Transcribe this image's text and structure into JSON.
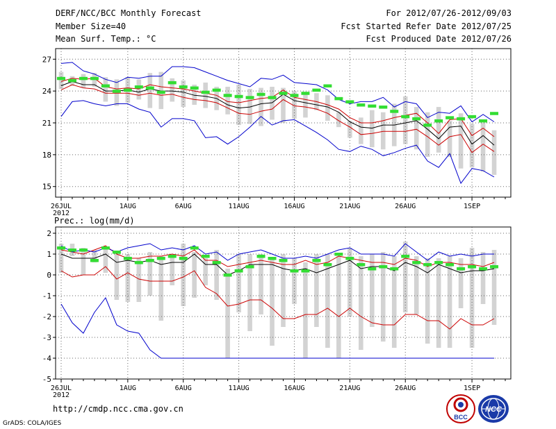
{
  "header": {
    "title": "DERF/NCC/BCC Monthly Forecast",
    "member_size": "Member Size=40",
    "variable": "Mean Surf. Temp.: °C",
    "forecast_period": "For 2012/07/26-2012/09/03",
    "started_refer": "Fcst Started Refer Date 2012/07/25",
    "produced": "Fcst Produced Date 2012/07/26"
  },
  "footer": {
    "url": "http://cmdp.ncc.cma.gov.cn",
    "grads": "GrADS: COLA/IGES",
    "logo_bcc": "BCC",
    "logo_ncc": "NCC"
  },
  "colors": {
    "median": "#000000",
    "inner_band": "#cc0000",
    "outer_band": "#0000cc",
    "climatology": "#33dd33",
    "spread": "#d3d3d3",
    "grid": "#666666"
  },
  "chart_data": [
    {
      "type": "line",
      "title": "Mean Surf. Temp.: °C",
      "ylabel": "°C",
      "x_tick_labels": [
        "26JUL",
        "1AUG",
        "6AUG",
        "11AUG",
        "16AUG",
        "21AUG",
        "26AUG",
        "1SEP"
      ],
      "x_tick_days": [
        0,
        6,
        11,
        16,
        21,
        26,
        31,
        37
      ],
      "x_sublabel": "2012",
      "xlim": [
        -0.5,
        40.5
      ],
      "ylim": [
        14,
        28
      ],
      "yticks": [
        15,
        18,
        21,
        24,
        27
      ],
      "x": [
        0,
        1,
        2,
        3,
        4,
        5,
        6,
        7,
        8,
        9,
        10,
        11,
        12,
        13,
        14,
        15,
        16,
        17,
        18,
        19,
        20,
        21,
        22,
        23,
        24,
        25,
        26,
        27,
        28,
        29,
        30,
        31,
        32,
        33,
        34,
        35,
        36,
        37,
        38,
        39
      ],
      "box_low": [
        24.2,
        24.5,
        24.3,
        24.4,
        23.0,
        22.6,
        22.9,
        23.2,
        22.4,
        22.3,
        23.0,
        22.5,
        22.7,
        22.4,
        22.2,
        21.8,
        20.8,
        20.9,
        20.7,
        21.3,
        21.0,
        21.4,
        21.5,
        22.2,
        21.2,
        20.6,
        19.6,
        19.0,
        18.7,
        18.5,
        18.8,
        19.0,
        18.5,
        17.8,
        18.2,
        17.8,
        16.7,
        16.8,
        16.4,
        16.1
      ],
      "box_high": [
        25.8,
        25.4,
        25.6,
        25.7,
        25.3,
        25.1,
        25.3,
        25.1,
        25.7,
        25.8,
        25.2,
        25.0,
        24.6,
        24.8,
        24.4,
        24.4,
        24.6,
        24.2,
        24.3,
        24.4,
        24.3,
        24.0,
        23.9,
        23.8,
        23.6,
        22.0,
        21.2,
        21.5,
        22.2,
        22.0,
        22.8,
        23.5,
        22.5,
        22.0,
        22.5,
        21.2,
        21.9,
        20.9,
        21.0,
        20.3
      ],
      "series": [
        {
          "name": "Ensemble median",
          "role": "median",
          "values": [
            24.5,
            24.9,
            24.6,
            24.6,
            24.0,
            24.0,
            24.1,
            23.9,
            24.2,
            24.0,
            24.0,
            23.9,
            23.6,
            23.5,
            23.3,
            22.7,
            22.4,
            22.5,
            22.8,
            22.9,
            23.7,
            23.1,
            22.9,
            22.7,
            22.5,
            22.0,
            21.1,
            20.6,
            20.5,
            20.8,
            20.8,
            21.0,
            21.2,
            20.4,
            19.5,
            20.6,
            20.7,
            19.0,
            19.8,
            18.9
          ]
        },
        {
          "name": "Inner band upper",
          "role": "inner_upper",
          "values": [
            24.9,
            25.2,
            25.1,
            25.2,
            24.4,
            24.2,
            24.3,
            24.2,
            24.6,
            24.4,
            24.3,
            24.2,
            24.0,
            23.8,
            23.6,
            23.0,
            22.9,
            23.1,
            23.3,
            23.4,
            24.1,
            23.4,
            23.2,
            23.0,
            22.7,
            22.3,
            21.5,
            21.0,
            21.0,
            21.2,
            21.5,
            21.7,
            21.9,
            21.0,
            20.0,
            21.3,
            21.4,
            19.8,
            20.5,
            19.7
          ]
        },
        {
          "name": "Inner band lower",
          "role": "inner_lower",
          "values": [
            24.1,
            24.6,
            24.3,
            24.2,
            23.8,
            23.8,
            23.8,
            23.6,
            23.8,
            23.6,
            23.7,
            23.4,
            23.2,
            23.1,
            22.9,
            22.4,
            21.9,
            21.8,
            22.1,
            22.3,
            23.2,
            22.6,
            22.5,
            22.3,
            21.9,
            21.2,
            20.6,
            19.9,
            20.0,
            20.2,
            20.2,
            20.2,
            20.4,
            19.7,
            18.9,
            19.7,
            19.9,
            18.2,
            19.0,
            18.3
          ]
        },
        {
          "name": "Outer band upper",
          "role": "outer_upper",
          "values": [
            26.6,
            26.7,
            25.9,
            25.6,
            25.1,
            24.8,
            25.3,
            25.2,
            25.4,
            25.4,
            26.3,
            26.3,
            26.2,
            25.8,
            25.4,
            25.0,
            24.7,
            24.4,
            25.2,
            25.1,
            25.5,
            24.8,
            24.7,
            24.6,
            24.1,
            23.2,
            22.8,
            23.0,
            23.0,
            23.4,
            22.5,
            23.0,
            22.8,
            21.5,
            22.0,
            21.9,
            22.6,
            21.1,
            21.8,
            21.1
          ]
        },
        {
          "name": "Outer band lower",
          "role": "outer_lower",
          "values": [
            21.6,
            23.0,
            23.1,
            22.8,
            22.6,
            22.8,
            22.8,
            22.3,
            22.0,
            20.6,
            21.4,
            21.4,
            21.2,
            19.6,
            19.7,
            19.0,
            19.7,
            20.6,
            21.6,
            20.8,
            21.2,
            21.3,
            20.7,
            20.1,
            19.4,
            18.5,
            18.3,
            18.8,
            18.5,
            17.9,
            18.2,
            18.6,
            18.9,
            17.4,
            16.8,
            18.1,
            15.3,
            16.7,
            16.5,
            15.9
          ]
        },
        {
          "name": "Climatology",
          "role": "climatology",
          "values": [
            25.2,
            25.0,
            25.2,
            25.2,
            24.5,
            24.0,
            24.1,
            24.4,
            24.3,
            23.9,
            24.8,
            24.4,
            24.3,
            23.9,
            24.1,
            23.6,
            23.5,
            23.4,
            23.7,
            23.4,
            23.8,
            23.6,
            23.8,
            24.1,
            24.5,
            23.3,
            23.0,
            22.7,
            22.6,
            22.5,
            22.1,
            21.6,
            21.4,
            20.8,
            21.2,
            21.5,
            21.4,
            21.6,
            21.2,
            21.9
          ]
        }
      ]
    },
    {
      "type": "line",
      "title": "Prec.: log(mm/d)",
      "ylabel": "log(mm/d)",
      "x_tick_labels": [
        "26JUL",
        "1AUG",
        "6AUG",
        "11AUG",
        "16AUG",
        "21AUG",
        "26AUG",
        "1SEP"
      ],
      "x_tick_days": [
        0,
        6,
        11,
        16,
        21,
        26,
        31,
        37
      ],
      "x_sublabel": "2012",
      "xlim": [
        -0.5,
        40.5
      ],
      "ylim": [
        -5,
        2.3
      ],
      "yticks": [
        -5,
        -4,
        -3,
        -2,
        -1,
        0,
        1,
        2
      ],
      "x": [
        0,
        1,
        2,
        3,
        4,
        5,
        6,
        7,
        8,
        9,
        10,
        11,
        12,
        13,
        14,
        15,
        16,
        17,
        18,
        19,
        20,
        21,
        22,
        23,
        24,
        25,
        26,
        27,
        28,
        29,
        30,
        31,
        32,
        33,
        34,
        35,
        36,
        37,
        38,
        39
      ],
      "box_low": [
        0.1,
        0.9,
        0.0,
        0.6,
        0.1,
        -1.2,
        -1.3,
        -1.3,
        -1.0,
        -2.2,
        -0.5,
        -1.5,
        -1.1,
        -0.5,
        -1.2,
        -4.0,
        -1.8,
        -2.7,
        -1.9,
        -3.4,
        -2.5,
        -1.4,
        -4.0,
        -2.5,
        -3.5,
        -4.0,
        -2.0,
        -3.6,
        -2.5,
        -3.2,
        -3.5,
        -1.8,
        -1.9,
        -3.3,
        -3.5,
        -3.5,
        -1.6,
        -3.5,
        -1.4,
        -2.4
      ],
      "box_high": [
        1.5,
        1.5,
        1.3,
        1.2,
        1.3,
        1.1,
        1.0,
        0.8,
        1.1,
        0.9,
        1.0,
        1.5,
        1.1,
        0.8,
        1.2,
        0.3,
        1.0,
        1.0,
        1.0,
        0.8,
        1.0,
        0.8,
        0.6,
        1.0,
        1.0,
        0.9,
        1.3,
        0.9,
        1.0,
        1.1,
        0.9,
        1.6,
        0.9,
        0.8,
        0.8,
        0.9,
        0.8,
        1.3,
        1.1,
        1.2
      ],
      "series": [
        {
          "name": "Ensemble median",
          "role": "median",
          "values": [
            1.0,
            0.8,
            0.8,
            0.8,
            1.0,
            0.6,
            0.7,
            0.6,
            0.7,
            0.5,
            0.6,
            0.6,
            1.0,
            0.5,
            0.5,
            0.0,
            0.2,
            0.5,
            0.5,
            0.5,
            0.3,
            0.2,
            0.3,
            0.1,
            0.3,
            0.5,
            0.7,
            0.3,
            0.4,
            0.4,
            0.2,
            0.6,
            0.4,
            0.1,
            0.5,
            0.3,
            0.1,
            0.2,
            0.2,
            0.3
          ]
        },
        {
          "name": "Inner band upper",
          "role": "inner_upper",
          "values": [
            1.2,
            1.1,
            1.0,
            1.2,
            1.4,
            1.0,
            0.8,
            0.8,
            0.9,
            0.9,
            1.0,
            0.9,
            1.2,
            0.7,
            0.7,
            0.4,
            0.5,
            0.6,
            0.7,
            0.6,
            0.5,
            0.5,
            0.7,
            0.5,
            0.6,
            0.9,
            0.8,
            0.7,
            0.6,
            0.6,
            0.5,
            0.8,
            0.7,
            0.4,
            0.6,
            0.6,
            0.5,
            0.5,
            0.4,
            0.6
          ]
        },
        {
          "name": "Inner band lower",
          "role": "inner_lower",
          "values": [
            0.2,
            -0.1,
            0.0,
            0.0,
            0.4,
            -0.2,
            0.1,
            -0.2,
            -0.3,
            -0.3,
            -0.3,
            -0.1,
            0.2,
            -0.6,
            -0.9,
            -1.5,
            -1.4,
            -1.2,
            -1.2,
            -1.6,
            -2.1,
            -2.1,
            -1.9,
            -1.9,
            -1.6,
            -2.0,
            -1.6,
            -2.0,
            -2.3,
            -2.4,
            -2.4,
            -1.9,
            -1.9,
            -2.2,
            -2.2,
            -2.6,
            -2.1,
            -2.4,
            -2.4,
            -2.1
          ]
        },
        {
          "name": "Outer band upper",
          "role": "outer_upper",
          "values": [
            1.4,
            1.1,
            1.2,
            1.1,
            1.3,
            1.1,
            1.3,
            1.4,
            1.5,
            1.2,
            1.3,
            1.2,
            1.4,
            1.0,
            1.1,
            0.7,
            1.0,
            1.1,
            1.2,
            1.0,
            0.8,
            0.8,
            0.9,
            0.8,
            1.0,
            1.2,
            1.3,
            1.0,
            1.0,
            1.0,
            0.9,
            1.5,
            1.1,
            0.7,
            1.1,
            0.9,
            1.0,
            0.9,
            1.0,
            1.0
          ]
        },
        {
          "name": "Outer band lower",
          "role": "outer_lower",
          "values": [
            -1.4,
            -2.3,
            -2.8,
            -1.8,
            -1.1,
            -2.4,
            -2.7,
            -2.8,
            -3.6,
            -4.0,
            -4.0,
            -4.0,
            -4.0,
            -4.0,
            -4.0,
            -4.0,
            -4.0,
            -4.0,
            -4.0,
            -4.0,
            -4.0,
            -4.0,
            -4.0,
            -4.0,
            -4.0,
            -4.0,
            -4.0,
            -4.0,
            -4.0,
            -4.0,
            -4.0,
            -4.0,
            -4.0,
            -4.0,
            -4.0,
            -4.0,
            -4.0,
            -4.0,
            -4.0,
            -4.0
          ]
        },
        {
          "name": "Climatology",
          "role": "climatology",
          "values": [
            1.3,
            1.2,
            1.2,
            0.7,
            1.3,
            1.1,
            0.8,
            0.6,
            0.7,
            0.8,
            0.9,
            0.8,
            1.3,
            0.9,
            0.6,
            0.0,
            0.2,
            0.4,
            0.9,
            0.8,
            0.7,
            0.2,
            0.2,
            0.7,
            0.5,
            1.0,
            0.8,
            0.5,
            0.3,
            0.4,
            0.3,
            0.9,
            0.6,
            0.5,
            0.6,
            0.5,
            0.3,
            0.4,
            0.3,
            0.4
          ]
        }
      ]
    }
  ]
}
